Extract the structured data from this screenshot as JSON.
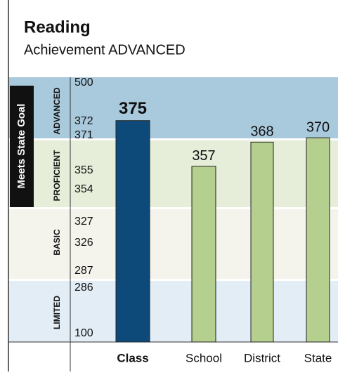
{
  "chart_data": {
    "type": "bar",
    "title": "Reading",
    "subtitle": "Achievement ADVANCED",
    "side_label": "Meets State Goal",
    "bands": [
      {
        "label": "ADVANCED",
        "color": "#a9c9dc"
      },
      {
        "label": "PROFICIENT",
        "color": "#e6eed9"
      },
      {
        "label": "BASIC",
        "color": "#f4f4ec"
      },
      {
        "label": "LIMITED",
        "color": "#e3edf5"
      }
    ],
    "categories": [
      "Class",
      "School",
      "District",
      "State"
    ],
    "values": [
      375,
      357,
      368,
      370
    ],
    "colors": [
      "#0d4a7a",
      "#b5cf8f",
      "#b5cf8f",
      "#b5cf8f"
    ],
    "ylim": [
      100,
      500
    ],
    "yticks": [
      500,
      372,
      371,
      355,
      354,
      327,
      326,
      287,
      286,
      100
    ]
  }
}
